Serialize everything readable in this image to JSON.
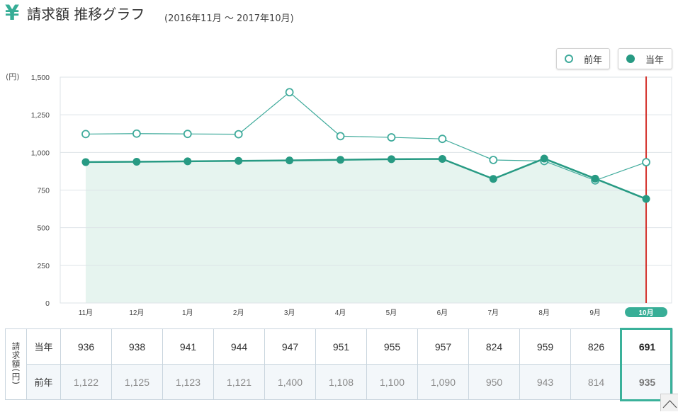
{
  "header": {
    "icon": "yen-icon",
    "icon_glyph": "¥"
  },
  "chart_data": {
    "type": "line",
    "title": "請求額 推移グラフ",
    "subtitle": "(2016年11月 ～ 2017年10月)",
    "ylabel": "(円)",
    "categories": [
      "11月",
      "12月",
      "1月",
      "2月",
      "3月",
      "4月",
      "5月",
      "6月",
      "7月",
      "8月",
      "9月",
      "10月"
    ],
    "series": [
      {
        "name": "当年",
        "values": [
          936,
          938,
          941,
          944,
          947,
          951,
          955,
          957,
          824,
          959,
          826,
          691
        ],
        "color": "#279a83"
      },
      {
        "name": "前年",
        "values": [
          1122,
          1125,
          1123,
          1121,
          1400,
          1108,
          1100,
          1090,
          950,
          943,
          814,
          935
        ],
        "color": "#40ab9c"
      }
    ],
    "ylim": [
      0,
      1500
    ],
    "ytick_labels": [
      "0",
      "250",
      "500",
      "750",
      "1,000",
      "1,250",
      "1,500"
    ],
    "grid": true,
    "legend_position": "top-right",
    "highlight_category": "10月"
  },
  "table": {
    "group_label": "請求額(円)",
    "rows": [
      {
        "label": "当年",
        "cells": [
          "936",
          "938",
          "941",
          "944",
          "947",
          "951",
          "955",
          "957",
          "824",
          "959",
          "826",
          "691"
        ]
      },
      {
        "label": "前年",
        "cells": [
          "1,122",
          "1,125",
          "1,123",
          "1,121",
          "1,400",
          "1,108",
          "1,100",
          "1,090",
          "950",
          "943",
          "814",
          "935"
        ]
      }
    ]
  },
  "scroll_top": {
    "icon": "chevron-up-icon"
  },
  "colors": {
    "accent": "#38ae97",
    "area_fill": "#e6f4ef",
    "marker_line": "#d4342e",
    "grid": "#dde3e7",
    "table_border": "#c9d5de",
    "previous_row_bg": "#f3f7fa"
  }
}
